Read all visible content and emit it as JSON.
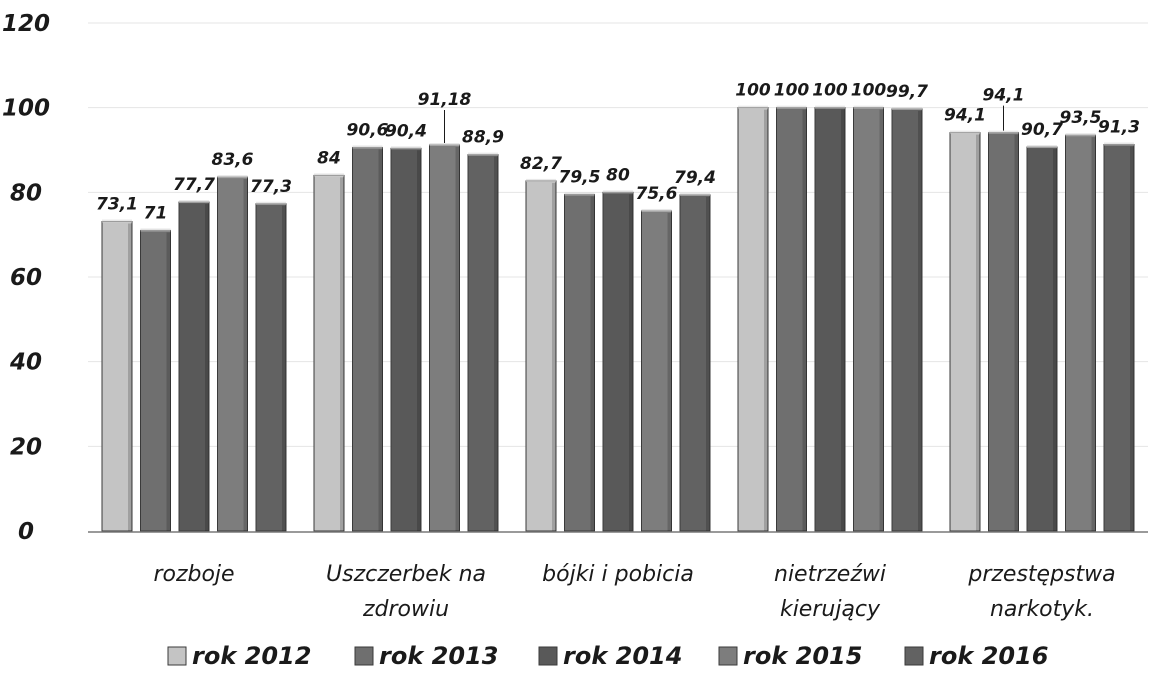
{
  "chart_data": {
    "type": "bar",
    "title": "",
    "xlabel": "",
    "ylabel": "",
    "ylim": [
      0,
      120
    ],
    "yticks": [
      "0",
      "20",
      "40",
      "60",
      "80",
      "100",
      "120"
    ],
    "grid": true,
    "legend_position": "bottom",
    "categories": [
      [
        "rozboje"
      ],
      [
        "Uszczerbek na",
        "zdrowiu"
      ],
      [
        "bójki i pobicia"
      ],
      [
        "nietrzeźwi",
        "kierujący"
      ],
      [
        "przestępstwa",
        "narkotyk."
      ]
    ],
    "series": [
      {
        "name": "rok 2012",
        "color": "#c4c4c4",
        "values": [
          73.1,
          84,
          82.7,
          100,
          94.1
        ],
        "labels": [
          "73,1",
          "84",
          "82,7",
          "100",
          "94,1"
        ]
      },
      {
        "name": "rok 2013",
        "color": "#6f6f6f",
        "values": [
          71,
          90.6,
          79.5,
          100,
          94.1
        ],
        "labels": [
          "71",
          "90,6",
          "79,5",
          "100",
          "94,1"
        ]
      },
      {
        "name": "rok 2014",
        "color": "#595959",
        "values": [
          77.7,
          90.4,
          80,
          100,
          90.7
        ],
        "labels": [
          "77,7",
          "90,4",
          "80",
          "100",
          "90,7"
        ]
      },
      {
        "name": "rok 2015",
        "color": "#7d7d7d",
        "values": [
          83.6,
          91.18,
          75.6,
          100,
          93.5
        ],
        "labels": [
          "83,6",
          "91,18",
          "75,6",
          "100",
          "93,5"
        ]
      },
      {
        "name": "rok 2016",
        "color": "#626262",
        "values": [
          77.3,
          88.9,
          79.4,
          99.7,
          91.3
        ],
        "labels": [
          "77,3",
          "88,9",
          "79,4",
          "99,7",
          "91,3"
        ]
      }
    ]
  }
}
